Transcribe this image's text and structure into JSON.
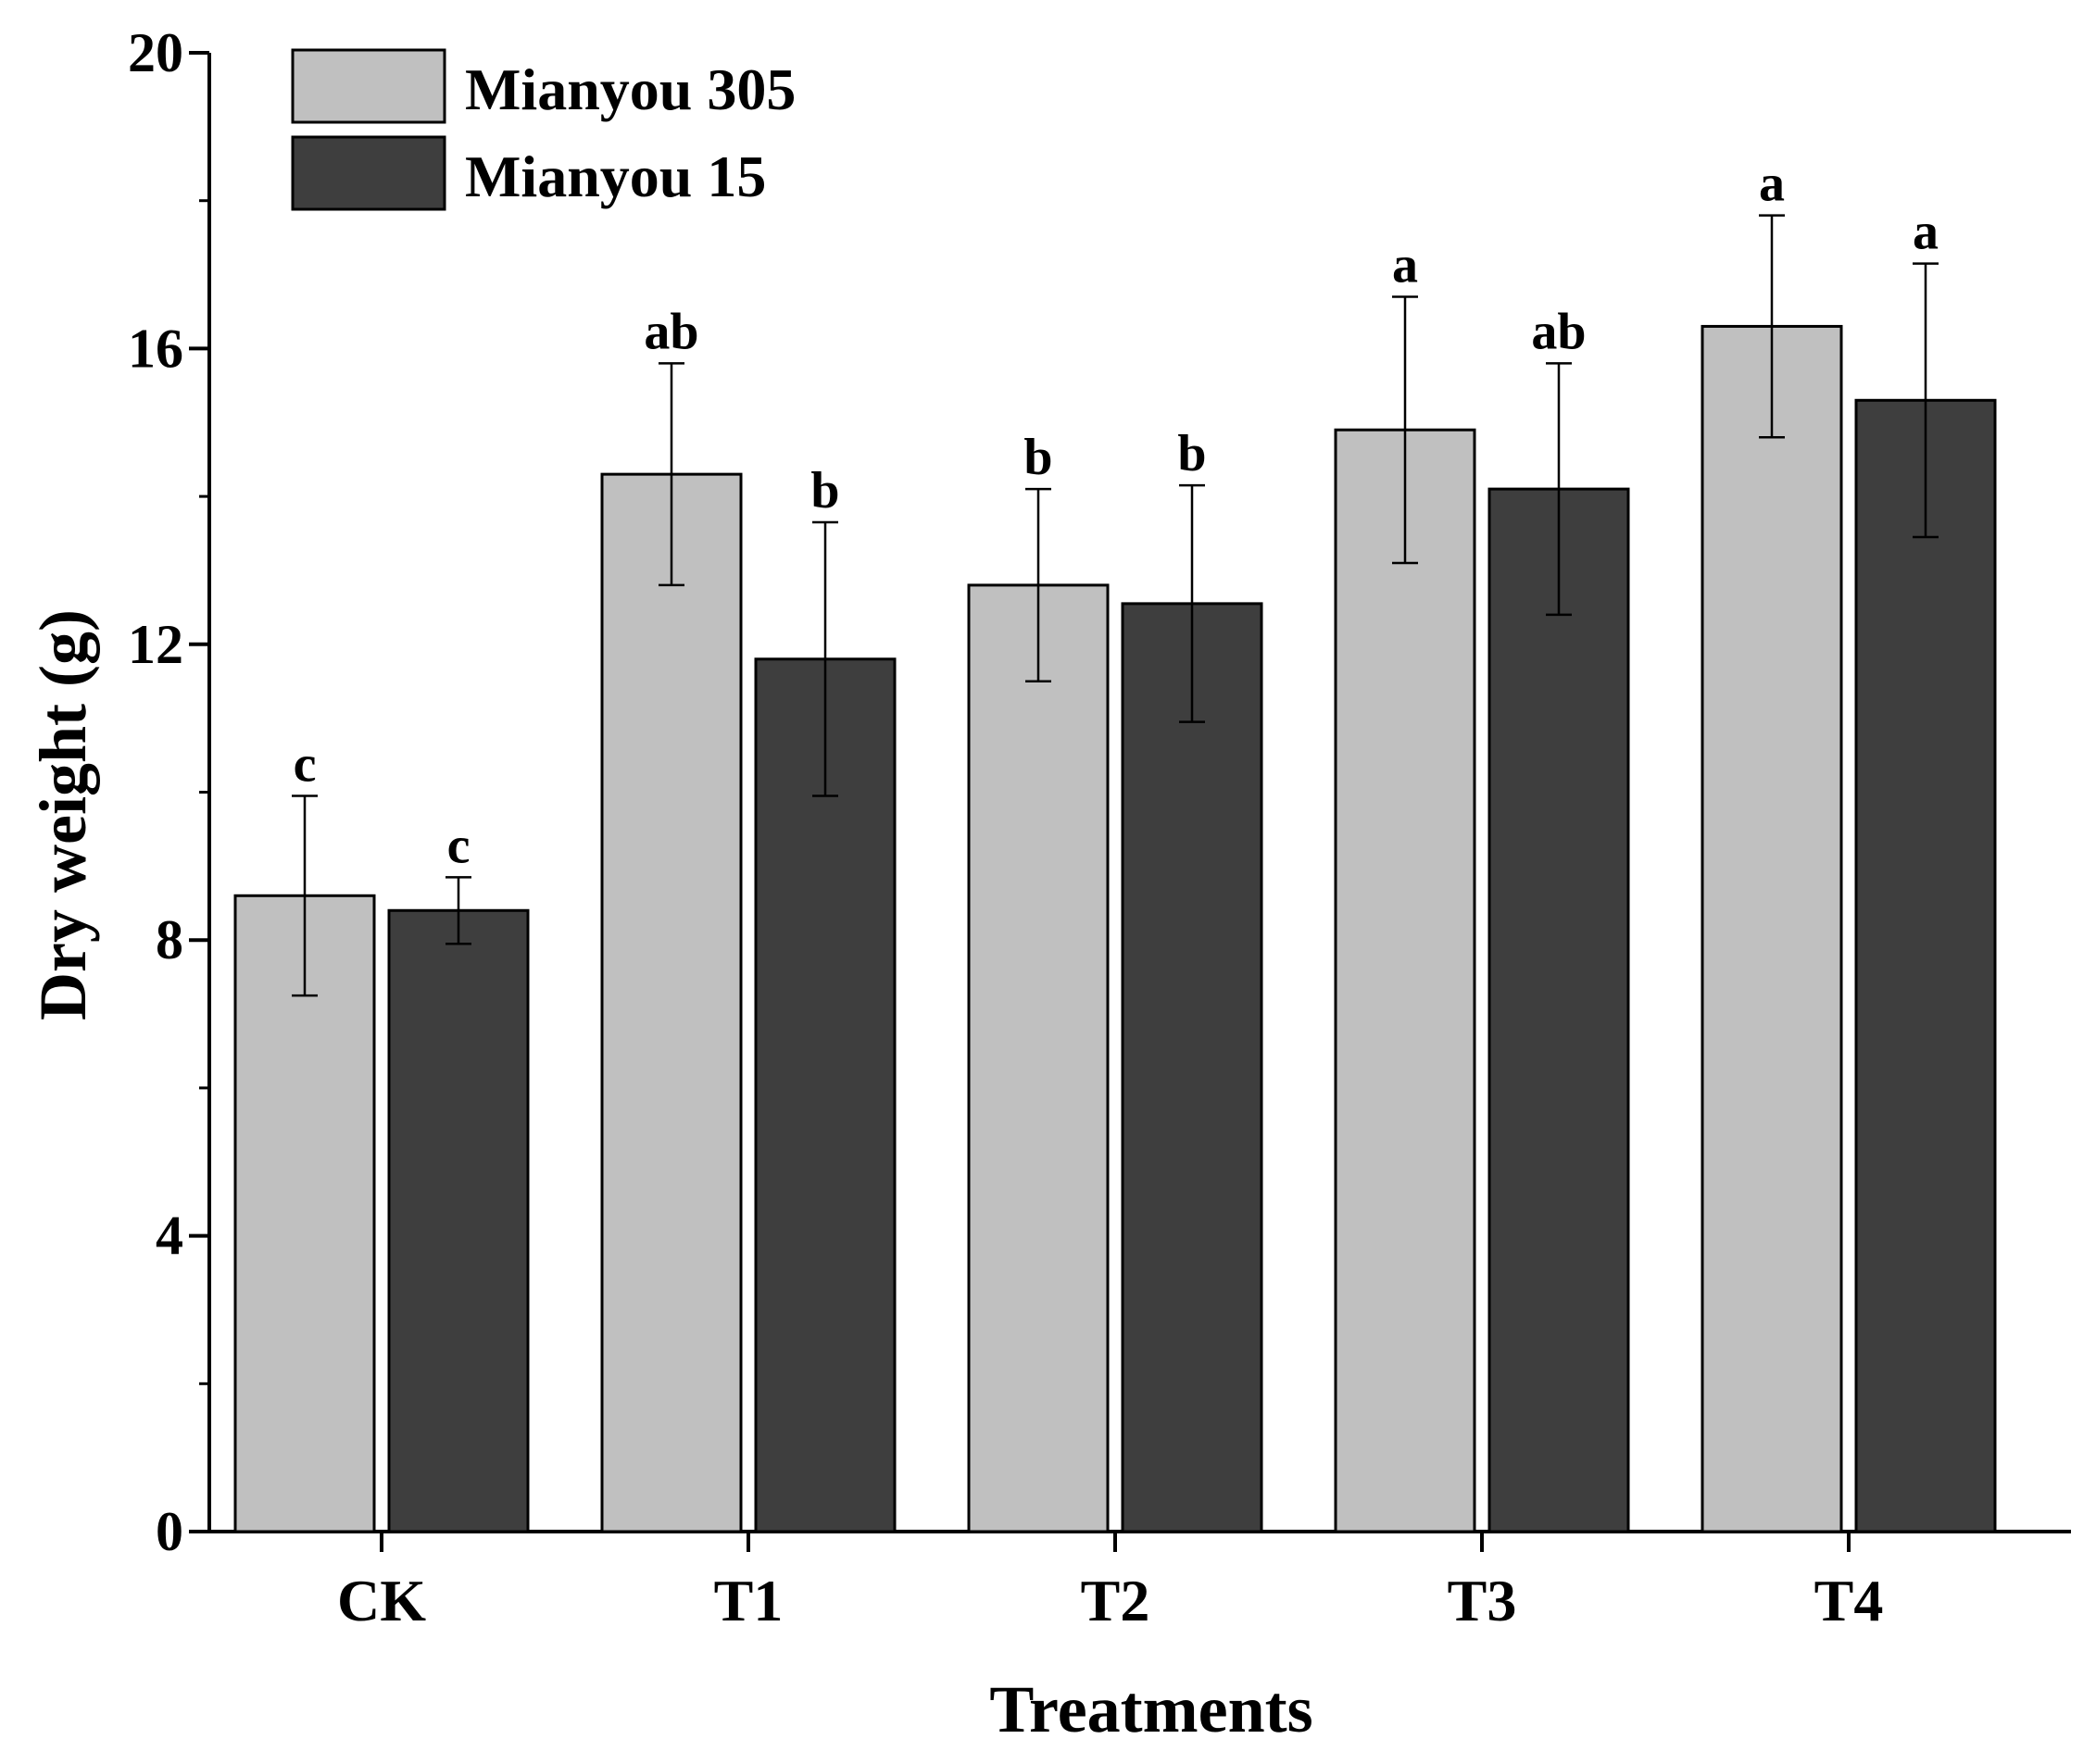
{
  "chart_data": {
    "type": "bar",
    "title": "",
    "xlabel": "Treatments",
    "ylabel": "Dry weight (g)",
    "ylim": [
      0,
      20
    ],
    "yticks": [
      "0",
      "4",
      "8",
      "12",
      "16",
      "20"
    ],
    "categories": [
      "CK",
      "T1",
      "T2",
      "T3",
      "T4"
    ],
    "series": [
      {
        "name": "Mianyou 305",
        "color": "#c0c0c0",
        "values": [
          8.6,
          14.3,
          12.8,
          14.9,
          16.3
        ],
        "errors": [
          1.35,
          1.5,
          1.3,
          1.8,
          1.5
        ],
        "significance": [
          "c",
          "ab",
          "b",
          "a",
          "a"
        ]
      },
      {
        "name": "Mianyou 15",
        "color": "#3e3e3e",
        "values": [
          8.4,
          11.8,
          12.55,
          14.1,
          15.3
        ],
        "errors": [
          0.45,
          1.85,
          1.6,
          1.7,
          1.85
        ],
        "significance": [
          "c",
          "b",
          "b",
          "ab",
          "a"
        ]
      }
    ],
    "legend_position": "top-left"
  }
}
